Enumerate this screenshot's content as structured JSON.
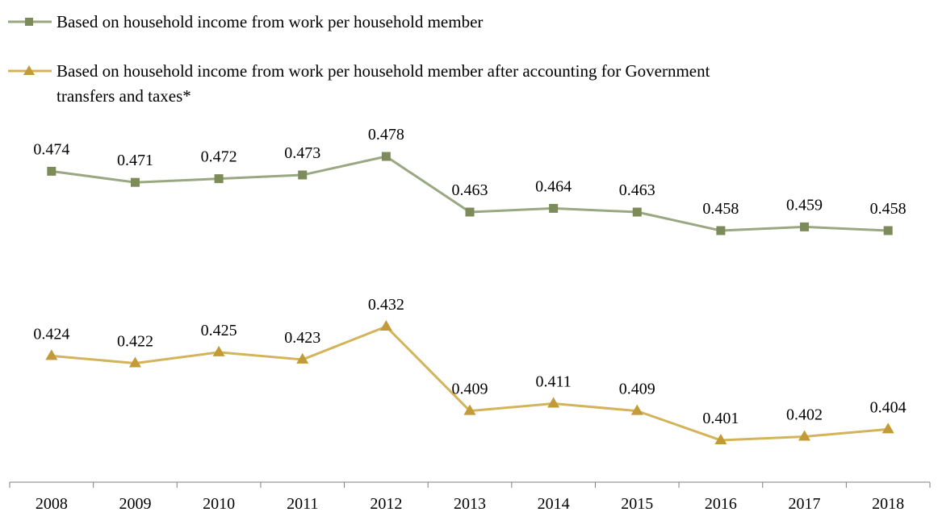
{
  "chart_data": {
    "type": "line",
    "categories": [
      "2008",
      "2009",
      "2010",
      "2011",
      "2012",
      "2013",
      "2014",
      "2015",
      "2016",
      "2017",
      "2018"
    ],
    "series": [
      {
        "name": "Based on household income from work per household member",
        "name_lines": [
          "Based on household income from work per household member"
        ],
        "marker": "square",
        "color": "#9aa882",
        "marker_color": "#7d8b5a",
        "values": [
          0.474,
          0.471,
          0.472,
          0.473,
          0.478,
          0.463,
          0.464,
          0.463,
          0.458,
          0.459,
          0.458
        ],
        "labels": [
          "0.474",
          "0.471",
          "0.472",
          "0.473",
          "0.478",
          "0.463",
          "0.464",
          "0.463",
          "0.458",
          "0.459",
          "0.458"
        ]
      },
      {
        "name": "Based on household income from work per household member after accounting for Government transfers and taxes*",
        "name_lines": [
          "Based on household income from work per household member after accounting for Government",
          "transfers and taxes*"
        ],
        "marker": "triangle",
        "color": "#d4b45a",
        "marker_color": "#c29a38",
        "values": [
          0.424,
          0.422,
          0.425,
          0.423,
          0.432,
          0.409,
          0.411,
          0.409,
          0.401,
          0.402,
          0.404
        ],
        "labels": [
          "0.424",
          "0.422",
          "0.425",
          "0.423",
          "0.432",
          "0.409",
          "0.411",
          "0.409",
          "0.401",
          "0.402",
          "0.404"
        ]
      }
    ],
    "title": "",
    "xlabel": "",
    "ylabel": "",
    "ylim": [
      0.39,
      0.49
    ],
    "y_axis_visible": false,
    "grid": false,
    "legend_position": "top-left"
  }
}
